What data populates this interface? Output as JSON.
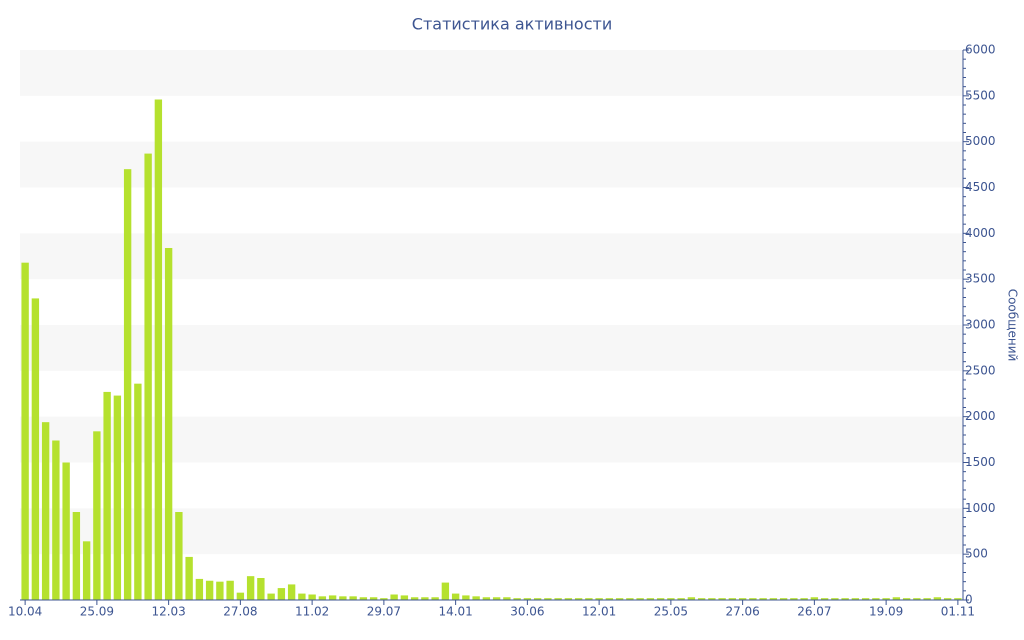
{
  "chart_data": {
    "type": "bar",
    "title": "Статистика активности",
    "y_label": "Сообщений",
    "categories": [
      "10.04",
      null,
      null,
      null,
      null,
      null,
      null,
      "25.09",
      null,
      null,
      null,
      null,
      null,
      null,
      "12.03",
      null,
      null,
      null,
      null,
      null,
      null,
      "27.08",
      null,
      null,
      null,
      null,
      null,
      null,
      "11.02",
      null,
      null,
      null,
      null,
      null,
      null,
      "29.07",
      null,
      null,
      null,
      null,
      null,
      null,
      "14.01",
      null,
      null,
      null,
      null,
      null,
      null,
      "30.06",
      null,
      null,
      null,
      null,
      null,
      null,
      "12.01",
      null,
      null,
      null,
      null,
      null,
      null,
      "25.05",
      null,
      null,
      null,
      null,
      null,
      null,
      "27.06",
      null,
      null,
      null,
      null,
      null,
      null,
      "26.07",
      null,
      null,
      null,
      null,
      null,
      null,
      "19.09",
      null,
      null,
      null,
      null,
      null,
      null,
      "01.11"
    ],
    "values": [
      3680,
      3290,
      1940,
      1740,
      1500,
      960,
      640,
      1840,
      2270,
      2230,
      4700,
      2360,
      4870,
      5460,
      3840,
      960,
      470,
      230,
      210,
      200,
      210,
      80,
      260,
      240,
      70,
      130,
      170,
      70,
      60,
      40,
      50,
      40,
      40,
      30,
      30,
      20,
      60,
      50,
      30,
      30,
      30,
      190,
      70,
      50,
      40,
      30,
      30,
      30,
      20,
      20,
      20,
      20,
      20,
      20,
      20,
      20,
      20,
      20,
      20,
      20,
      20,
      20,
      20,
      20,
      20,
      30,
      20,
      20,
      20,
      20,
      20,
      20,
      20,
      20,
      20,
      20,
      20,
      30,
      20,
      20,
      20,
      20,
      20,
      20,
      20,
      30,
      20,
      20,
      20,
      30,
      20,
      20
    ],
    "color": "#b5e12e",
    "ylim": [
      0,
      6000
    ],
    "yticks": [
      0,
      500,
      1000,
      1500,
      2000,
      2500,
      3000,
      3500,
      4000,
      4500,
      5000,
      5500,
      6000
    ],
    "y_axis_side": "right",
    "bands": true
  }
}
